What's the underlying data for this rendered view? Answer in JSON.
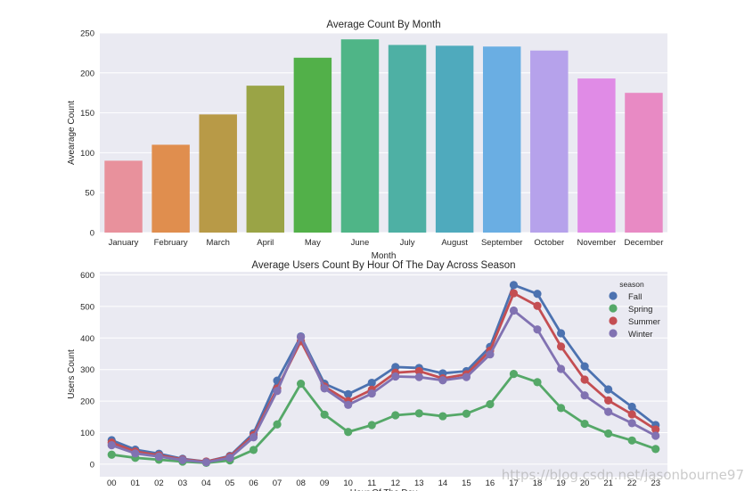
{
  "chart_data": [
    {
      "type": "bar",
      "title": "Average Count By Month",
      "xlabel": "Month",
      "ylabel": "Avearage Count",
      "ylim": [
        0,
        250
      ],
      "yticks": [
        0,
        50,
        100,
        150,
        200,
        250
      ],
      "grid": true,
      "categories": [
        "January",
        "February",
        "March",
        "April",
        "May",
        "June",
        "July",
        "August",
        "September",
        "October",
        "November",
        "December"
      ],
      "values": [
        90,
        110,
        148,
        184,
        219,
        242,
        235,
        234,
        233,
        228,
        193,
        175
      ],
      "colors": [
        "#E8919C",
        "#E08E4E",
        "#B89A47",
        "#9AA446",
        "#52B049",
        "#4FB587",
        "#4EB0A4",
        "#4FAABD",
        "#6AAEE3",
        "#B6A2EB",
        "#E08BE6",
        "#E88AC4"
      ]
    },
    {
      "type": "line",
      "title": "Average Users Count By Hour Of The Day Across Season",
      "xlabel": "Hour Of The Day",
      "ylabel": "Users Count",
      "ylim": [
        -40,
        610
      ],
      "yticks": [
        0,
        100,
        200,
        300,
        400,
        500,
        600
      ],
      "grid": true,
      "legend_title": "season",
      "legend_position": "top-right",
      "categories": [
        "00",
        "01",
        "02",
        "03",
        "04",
        "05",
        "06",
        "07",
        "08",
        "09",
        "10",
        "11",
        "12",
        "13",
        "14",
        "15",
        "16",
        "17",
        "18",
        "19",
        "20",
        "21",
        "22",
        "23"
      ],
      "series": [
        {
          "name": "Fall",
          "color": "#4C72B0",
          "values": [
            76,
            46,
            33,
            17,
            8,
            26,
            98,
            265,
            405,
            255,
            222,
            258,
            308,
            305,
            288,
            295,
            372,
            568,
            540,
            415,
            310,
            237,
            182,
            124
          ]
        },
        {
          "name": "Spring",
          "color": "#55A868",
          "values": [
            30,
            20,
            14,
            8,
            4,
            12,
            45,
            126,
            255,
            157,
            102,
            124,
            155,
            161,
            152,
            160,
            190,
            286,
            260,
            178,
            128,
            97,
            75,
            48
          ]
        },
        {
          "name": "Summer",
          "color": "#C44E52",
          "values": [
            68,
            40,
            28,
            15,
            8,
            24,
            92,
            240,
            390,
            246,
            200,
            236,
            290,
            295,
            272,
            285,
            360,
            542,
            502,
            373,
            268,
            202,
            158,
            110
          ]
        },
        {
          "name": "Winter",
          "color": "#8172B2",
          "values": [
            60,
            34,
            24,
            13,
            6,
            20,
            85,
            232,
            403,
            240,
            188,
            224,
            278,
            276,
            266,
            276,
            348,
            487,
            427,
            302,
            218,
            166,
            130,
            90
          ]
        }
      ]
    }
  ],
  "watermark": "https://blog.csdn.net/jasonbourne97"
}
